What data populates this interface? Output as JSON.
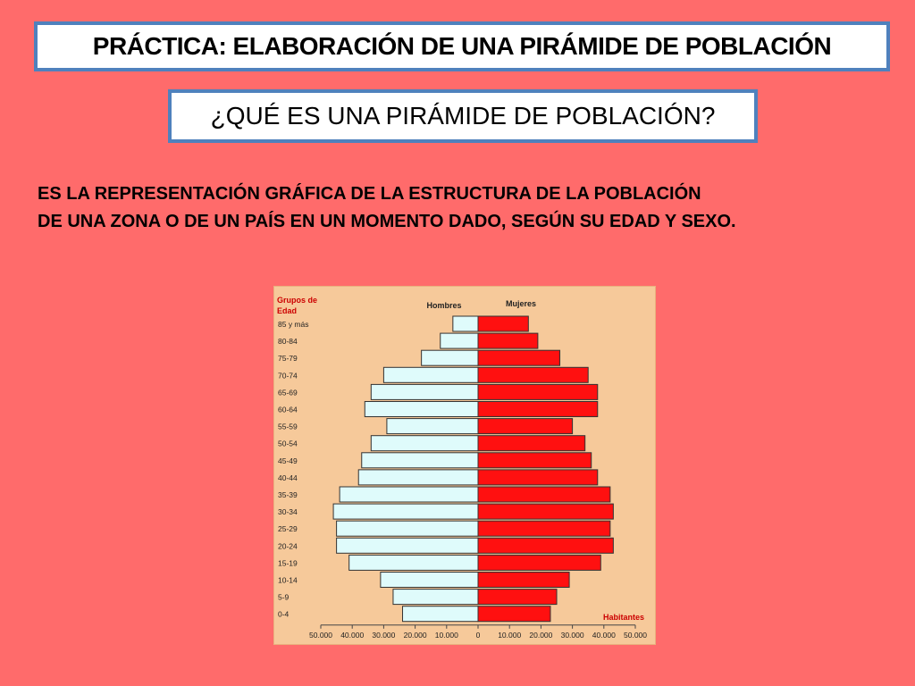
{
  "slide": {
    "title": "PRÁCTICA: ELABORACIÓN DE UNA PIRÁMIDE DE POBLACIÓN",
    "question": "¿QUÉ ES UNA PIRÁMIDE DE POBLACIÓN?",
    "definition_line1": "ES LA REPRESENTACIÓN GRÁFICA DE LA ESTRUCTURA DE LA POBLACIÓN",
    "definition_line2": "DE UNA ZONA O DE UN PAÍS EN UN MOMENTO DADO, SEGÚN SU EDAD Y SEXO."
  },
  "colors": {
    "background": "#ff6b6b",
    "box_border": "#4f81bd",
    "chart_background": "#f6c99a",
    "men": "#dffbfb",
    "women": "#ff1010",
    "age_label": "#cc0000"
  },
  "chart_data": {
    "type": "bar",
    "orientation": "horizontal-pyramid",
    "title_left": "Grupos de Edad",
    "men_label": "Hombres",
    "women_label": "Mujeres",
    "x_unit_label": "Habitantes",
    "categories": [
      "85 y más",
      "80-84",
      "75-79",
      "70-74",
      "65-69",
      "60-64",
      "55-59",
      "50-54",
      "45-49",
      "40-44",
      "35-39",
      "30-34",
      "25-29",
      "20-24",
      "15-19",
      "10-14",
      "5-9",
      "0-4"
    ],
    "series": [
      {
        "name": "Hombres",
        "values": [
          8000,
          12000,
          18000,
          30000,
          34000,
          36000,
          29000,
          34000,
          37000,
          38000,
          44000,
          46000,
          45000,
          45000,
          41000,
          31000,
          27000,
          24000
        ]
      },
      {
        "name": "Mujeres",
        "values": [
          16000,
          19000,
          26000,
          35000,
          38000,
          38000,
          30000,
          34000,
          36000,
          38000,
          42000,
          43000,
          42000,
          43000,
          39000,
          29000,
          25000,
          23000
        ]
      }
    ],
    "x_ticks": [
      "50.000",
      "40.000",
      "30.000",
      "20.000",
      "10.000",
      "0",
      "10.000",
      "20.000",
      "30.000",
      "40.000",
      "50.000"
    ],
    "xlim": [
      -50000,
      50000
    ]
  }
}
